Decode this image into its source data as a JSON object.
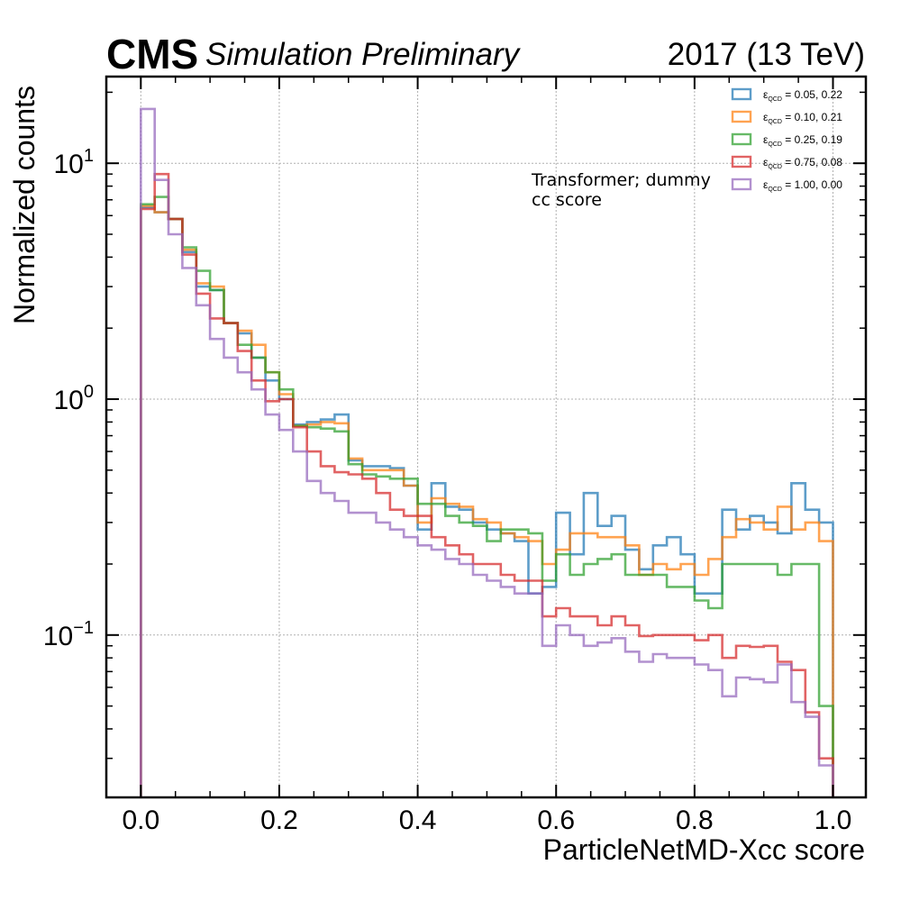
{
  "header": {
    "experiment": "CMS",
    "status": "Simulation Preliminary",
    "lumi": "2017 (13 TeV)"
  },
  "annotation": [
    "Transformer; dummy",
    "cc score"
  ],
  "chart_data": {
    "type": "histogram",
    "xlabel": "ParticleNetMD-Xcc score",
    "ylabel": "Normalized counts",
    "xlim": [
      -0.05,
      1.05
    ],
    "ylim": [
      0.02,
      23
    ],
    "yscale": "log",
    "grid": true,
    "legend_position": "top-right",
    "bin_edges": [
      0.0,
      0.02,
      0.04,
      0.06,
      0.08,
      0.1,
      0.12,
      0.14,
      0.16,
      0.18,
      0.2,
      0.22,
      0.24,
      0.26,
      0.28,
      0.3,
      0.32,
      0.34,
      0.36,
      0.38,
      0.4,
      0.42,
      0.44,
      0.46,
      0.48,
      0.5,
      0.52,
      0.54,
      0.56,
      0.58,
      0.6,
      0.62,
      0.64,
      0.66,
      0.68,
      0.7,
      0.72,
      0.74,
      0.76,
      0.78,
      0.8,
      0.82,
      0.84,
      0.86,
      0.88,
      0.9,
      0.92,
      0.94,
      0.96,
      0.98,
      1.0
    ],
    "x_ticks": [
      "0.0",
      "0.2",
      "0.4",
      "0.6",
      "0.8",
      "1.0"
    ],
    "y_ticks": [
      {
        "base": "10",
        "exp": "1",
        "value": 10
      },
      {
        "base": "10",
        "exp": "0",
        "value": 1
      },
      {
        "base": "10",
        "exp": "−1",
        "value": 0.1
      }
    ],
    "series": [
      {
        "label_sub": "QCD",
        "label_val": " = 0.05, 0.22",
        "color": "#1f77b4",
        "values": [
          6.5,
          6.2,
          5.8,
          4.2,
          3.0,
          2.9,
          2.1,
          1.9,
          1.5,
          1.2,
          1.0,
          0.78,
          0.8,
          0.82,
          0.86,
          0.55,
          0.52,
          0.52,
          0.51,
          0.43,
          0.28,
          0.44,
          0.35,
          0.34,
          0.3,
          0.28,
          0.27,
          0.25,
          0.15,
          0.16,
          0.33,
          0.22,
          0.4,
          0.29,
          0.32,
          0.23,
          0.19,
          0.24,
          0.26,
          0.22,
          0.15,
          0.15,
          0.34,
          0.28,
          0.32,
          0.3,
          0.27,
          0.44,
          0.34,
          0.3
        ]
      },
      {
        "label_sub": "QCD",
        "label_val": " = 0.10, 0.21",
        "color": "#ff7f0e",
        "values": [
          6.6,
          6.2,
          5.8,
          4.3,
          3.1,
          3.0,
          2.1,
          1.95,
          1.7,
          1.3,
          1.05,
          0.77,
          0.78,
          0.8,
          0.79,
          0.56,
          0.5,
          0.5,
          0.5,
          0.43,
          0.3,
          0.38,
          0.36,
          0.35,
          0.31,
          0.3,
          0.27,
          0.26,
          0.25,
          0.2,
          0.23,
          0.27,
          0.27,
          0.26,
          0.26,
          0.24,
          0.18,
          0.2,
          0.19,
          0.2,
          0.18,
          0.21,
          0.26,
          0.31,
          0.3,
          0.28,
          0.35,
          0.28,
          0.3,
          0.25
        ]
      },
      {
        "label_sub": "QCD",
        "label_val": " = 0.25, 0.19",
        "color": "#2ca02c",
        "values": [
          6.7,
          7.2,
          5.8,
          4.4,
          3.5,
          2.9,
          2.1,
          1.7,
          1.5,
          1.3,
          1.1,
          0.77,
          0.76,
          0.75,
          0.73,
          0.53,
          0.48,
          0.47,
          0.46,
          0.46,
          0.36,
          0.36,
          0.32,
          0.3,
          0.29,
          0.25,
          0.28,
          0.28,
          0.27,
          0.17,
          0.22,
          0.18,
          0.2,
          0.21,
          0.22,
          0.18,
          0.18,
          0.18,
          0.16,
          0.16,
          0.14,
          0.13,
          0.2,
          0.2,
          0.2,
          0.2,
          0.18,
          0.2,
          0.2,
          0.05
        ]
      },
      {
        "label_sub": "QCD",
        "label_val": " = 0.75, 0.08",
        "color": "#d62728",
        "values": [
          6.4,
          9.0,
          5.8,
          4.1,
          2.8,
          2.2,
          2.1,
          1.6,
          1.2,
          0.98,
          1.0,
          0.76,
          0.6,
          0.52,
          0.49,
          0.48,
          0.46,
          0.4,
          0.34,
          0.32,
          0.32,
          0.26,
          0.24,
          0.22,
          0.2,
          0.2,
          0.18,
          0.17,
          0.17,
          0.12,
          0.13,
          0.12,
          0.12,
          0.11,
          0.12,
          0.11,
          0.099,
          0.1,
          0.1,
          0.1,
          0.095,
          0.1,
          0.08,
          0.09,
          0.089,
          0.09,
          0.077,
          0.071,
          0.047,
          0.03
        ]
      },
      {
        "label_sub": "QCD",
        "label_val": " = 1.00, 0.00",
        "color": "#9467bd",
        "values": [
          17.0,
          8.5,
          5.0,
          3.6,
          2.5,
          1.8,
          1.5,
          1.3,
          1.1,
          0.86,
          0.74,
          0.6,
          0.45,
          0.4,
          0.37,
          0.33,
          0.33,
          0.3,
          0.28,
          0.26,
          0.24,
          0.23,
          0.21,
          0.2,
          0.18,
          0.17,
          0.16,
          0.15,
          0.15,
          0.09,
          0.11,
          0.1,
          0.09,
          0.093,
          0.097,
          0.085,
          0.077,
          0.083,
          0.08,
          0.08,
          0.075,
          0.071,
          0.055,
          0.066,
          0.065,
          0.063,
          0.075,
          0.052,
          0.045,
          0.028
        ]
      }
    ]
  }
}
